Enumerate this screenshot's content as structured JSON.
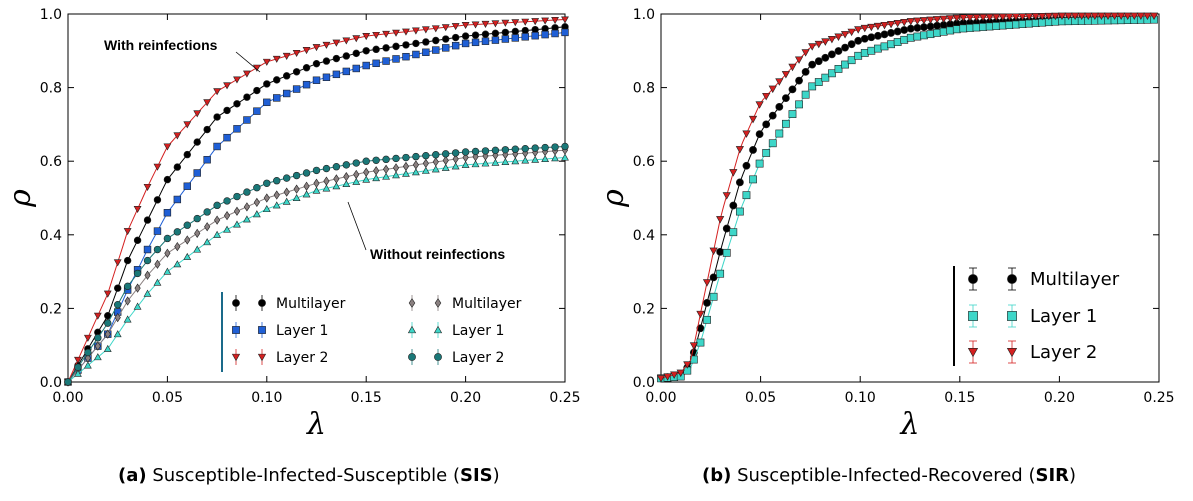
{
  "captions": [
    {
      "letter": "(a)",
      "text_pre": "Susceptible-Infected-Susceptible (",
      "abbr": "SIS",
      "text_post": ")"
    },
    {
      "letter": "(b)",
      "text_pre": "Susceptible-Infected-Recovered (",
      "abbr": "SIR",
      "text_post": ")"
    }
  ],
  "chart_data": [
    {
      "type": "scatter",
      "panel": "a",
      "xlabel": "λ",
      "ylabel": "ρ",
      "xlim": [
        0,
        0.25
      ],
      "ylim": [
        0,
        1.0
      ],
      "xticks": [
        "0.00",
        "0.05",
        "0.10",
        "0.15",
        "0.20",
        "0.25"
      ],
      "yticks": [
        "0.0",
        "0.2",
        "0.4",
        "0.6",
        "0.8",
        "1.0"
      ],
      "annotations": [
        "With reinfections",
        "Without reinfections"
      ],
      "legend": {
        "placement": "lower-right",
        "entries": [
          "Multilayer",
          "Layer 1",
          "Layer 2",
          "Multilayer",
          "Layer 1",
          "Layer 2"
        ]
      },
      "series": [
        {
          "name": "Multilayer",
          "group": "With reinfections",
          "color": "#000000",
          "marker": "circle",
          "x": [
            0.0,
            0.02,
            0.03,
            0.04,
            0.05,
            0.075,
            0.1,
            0.125,
            0.15,
            0.2,
            0.25
          ],
          "y": [
            0.0,
            0.18,
            0.33,
            0.44,
            0.55,
            0.72,
            0.81,
            0.865,
            0.9,
            0.94,
            0.965
          ]
        },
        {
          "name": "Layer 1",
          "group": "With reinfections",
          "color": "#1f5fd6",
          "marker": "square",
          "x": [
            0.0,
            0.02,
            0.03,
            0.04,
            0.05,
            0.075,
            0.1,
            0.125,
            0.15,
            0.2,
            0.25
          ],
          "y": [
            0.0,
            0.13,
            0.25,
            0.36,
            0.46,
            0.64,
            0.76,
            0.82,
            0.86,
            0.92,
            0.95
          ]
        },
        {
          "name": "Layer 2",
          "group": "With reinfections",
          "color": "#d42020",
          "marker": "triangle-down",
          "x": [
            0.0,
            0.02,
            0.03,
            0.04,
            0.05,
            0.075,
            0.1,
            0.125,
            0.15,
            0.2,
            0.25
          ],
          "y": [
            0.0,
            0.24,
            0.41,
            0.53,
            0.64,
            0.79,
            0.87,
            0.91,
            0.94,
            0.97,
            0.985
          ]
        },
        {
          "name": "Multilayer",
          "group": "Without reinfections",
          "color": "#8a8080",
          "marker": "diamond",
          "x": [
            0.0,
            0.02,
            0.03,
            0.04,
            0.05,
            0.075,
            0.1,
            0.125,
            0.15,
            0.2,
            0.25
          ],
          "y": [
            0.0,
            0.13,
            0.22,
            0.29,
            0.35,
            0.44,
            0.5,
            0.54,
            0.57,
            0.61,
            0.63
          ]
        },
        {
          "name": "Layer 1",
          "group": "Without reinfections",
          "color": "#3dd6c8",
          "marker": "triangle-up",
          "x": [
            0.0,
            0.02,
            0.03,
            0.04,
            0.05,
            0.075,
            0.1,
            0.125,
            0.15,
            0.2,
            0.25
          ],
          "y": [
            0.0,
            0.09,
            0.17,
            0.24,
            0.3,
            0.4,
            0.47,
            0.52,
            0.55,
            0.59,
            0.61
          ]
        },
        {
          "name": "Layer 2",
          "group": "Without reinfections",
          "color": "#1a7878",
          "marker": "circle",
          "x": [
            0.0,
            0.02,
            0.03,
            0.04,
            0.05,
            0.075,
            0.1,
            0.125,
            0.15,
            0.2,
            0.25
          ],
          "y": [
            0.0,
            0.16,
            0.26,
            0.33,
            0.39,
            0.48,
            0.54,
            0.575,
            0.6,
            0.625,
            0.64
          ]
        }
      ]
    },
    {
      "type": "scatter",
      "panel": "b",
      "xlabel": "λ",
      "ylabel": "ρ",
      "xlim": [
        0,
        0.25
      ],
      "ylim": [
        0,
        1.0
      ],
      "xticks": [
        "0.00",
        "0.05",
        "0.10",
        "0.15",
        "0.20",
        "0.25"
      ],
      "yticks": [
        "0.0",
        "0.2",
        "0.4",
        "0.6",
        "0.8",
        "1.0"
      ],
      "legend": {
        "placement": "lower-right",
        "entries": [
          "Multilayer",
          "Layer 1",
          "Layer 2"
        ]
      },
      "series": [
        {
          "name": "Multilayer",
          "color": "#000000",
          "marker": "circle",
          "x": [
            0.0,
            0.01,
            0.015,
            0.02,
            0.03,
            0.04,
            0.05,
            0.075,
            0.1,
            0.125,
            0.15,
            0.2,
            0.25
          ],
          "y": [
            0.01,
            0.02,
            0.05,
            0.15,
            0.36,
            0.55,
            0.68,
            0.86,
            0.93,
            0.96,
            0.975,
            0.985,
            0.99
          ]
        },
        {
          "name": "Layer 1",
          "color": "#3dd6c8",
          "marker": "square",
          "x": [
            0.0,
            0.01,
            0.015,
            0.02,
            0.03,
            0.04,
            0.05,
            0.075,
            0.1,
            0.125,
            0.15,
            0.2,
            0.25
          ],
          "y": [
            0.01,
            0.015,
            0.04,
            0.11,
            0.3,
            0.47,
            0.6,
            0.8,
            0.89,
            0.935,
            0.96,
            0.98,
            0.985
          ]
        },
        {
          "name": "Layer 2",
          "color": "#d42020",
          "marker": "triangle-down",
          "x": [
            0.0,
            0.01,
            0.015,
            0.02,
            0.03,
            0.04,
            0.05,
            0.075,
            0.1,
            0.125,
            0.15,
            0.2,
            0.25
          ],
          "y": [
            0.01,
            0.025,
            0.06,
            0.19,
            0.45,
            0.64,
            0.76,
            0.91,
            0.96,
            0.98,
            0.99,
            0.995,
            0.995
          ]
        }
      ]
    }
  ]
}
